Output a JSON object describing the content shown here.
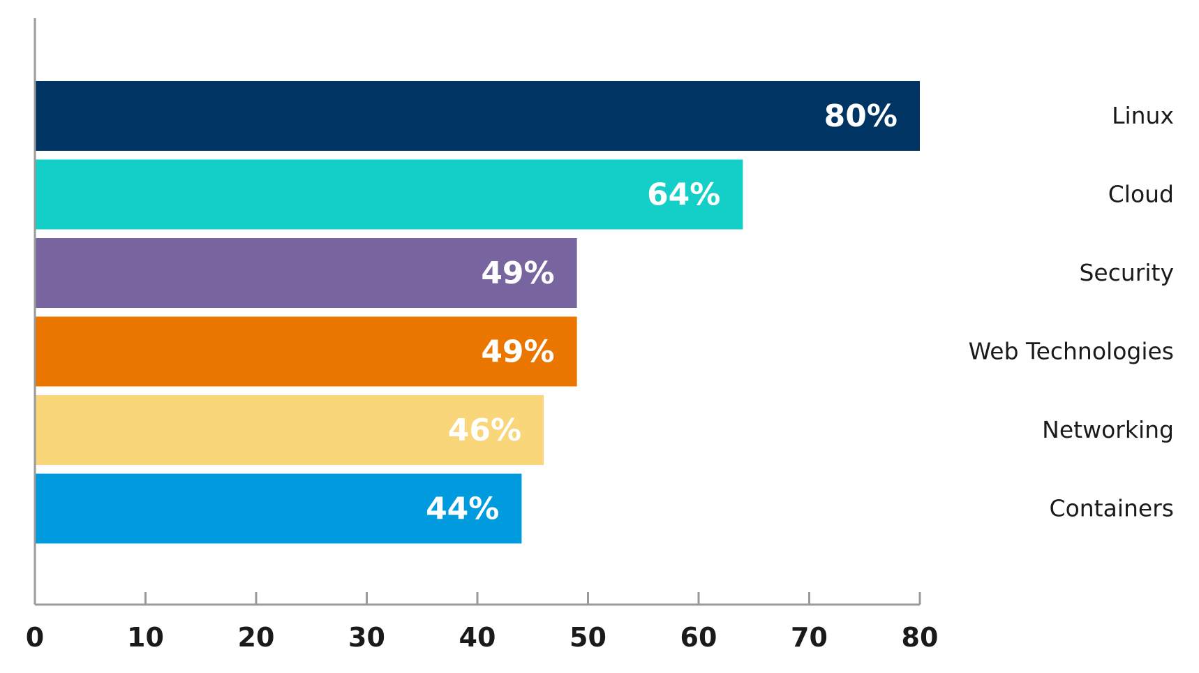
{
  "chart_data": {
    "type": "bar",
    "orientation": "horizontal",
    "categories": [
      "Linux",
      "Cloud",
      "Security",
      "Web Technologies",
      "Networking",
      "Containers"
    ],
    "values": [
      80,
      64,
      49,
      49,
      46,
      44
    ],
    "value_labels": [
      "80%",
      "64%",
      "49%",
      "49%",
      "46%",
      "44%"
    ],
    "colors": [
      "#003462",
      "#13cfc7",
      "#78649f",
      "#ea7600",
      "#f9d67a",
      "#009bde"
    ],
    "xlim": [
      0,
      80
    ],
    "xticks": [
      0,
      10,
      20,
      30,
      40,
      50,
      60,
      70,
      80
    ],
    "xtick_labels": [
      "0",
      "10",
      "20",
      "30",
      "40",
      "50",
      "60",
      "70",
      "80"
    ],
    "category_label_position": "right",
    "grid": false,
    "legend": false
  }
}
